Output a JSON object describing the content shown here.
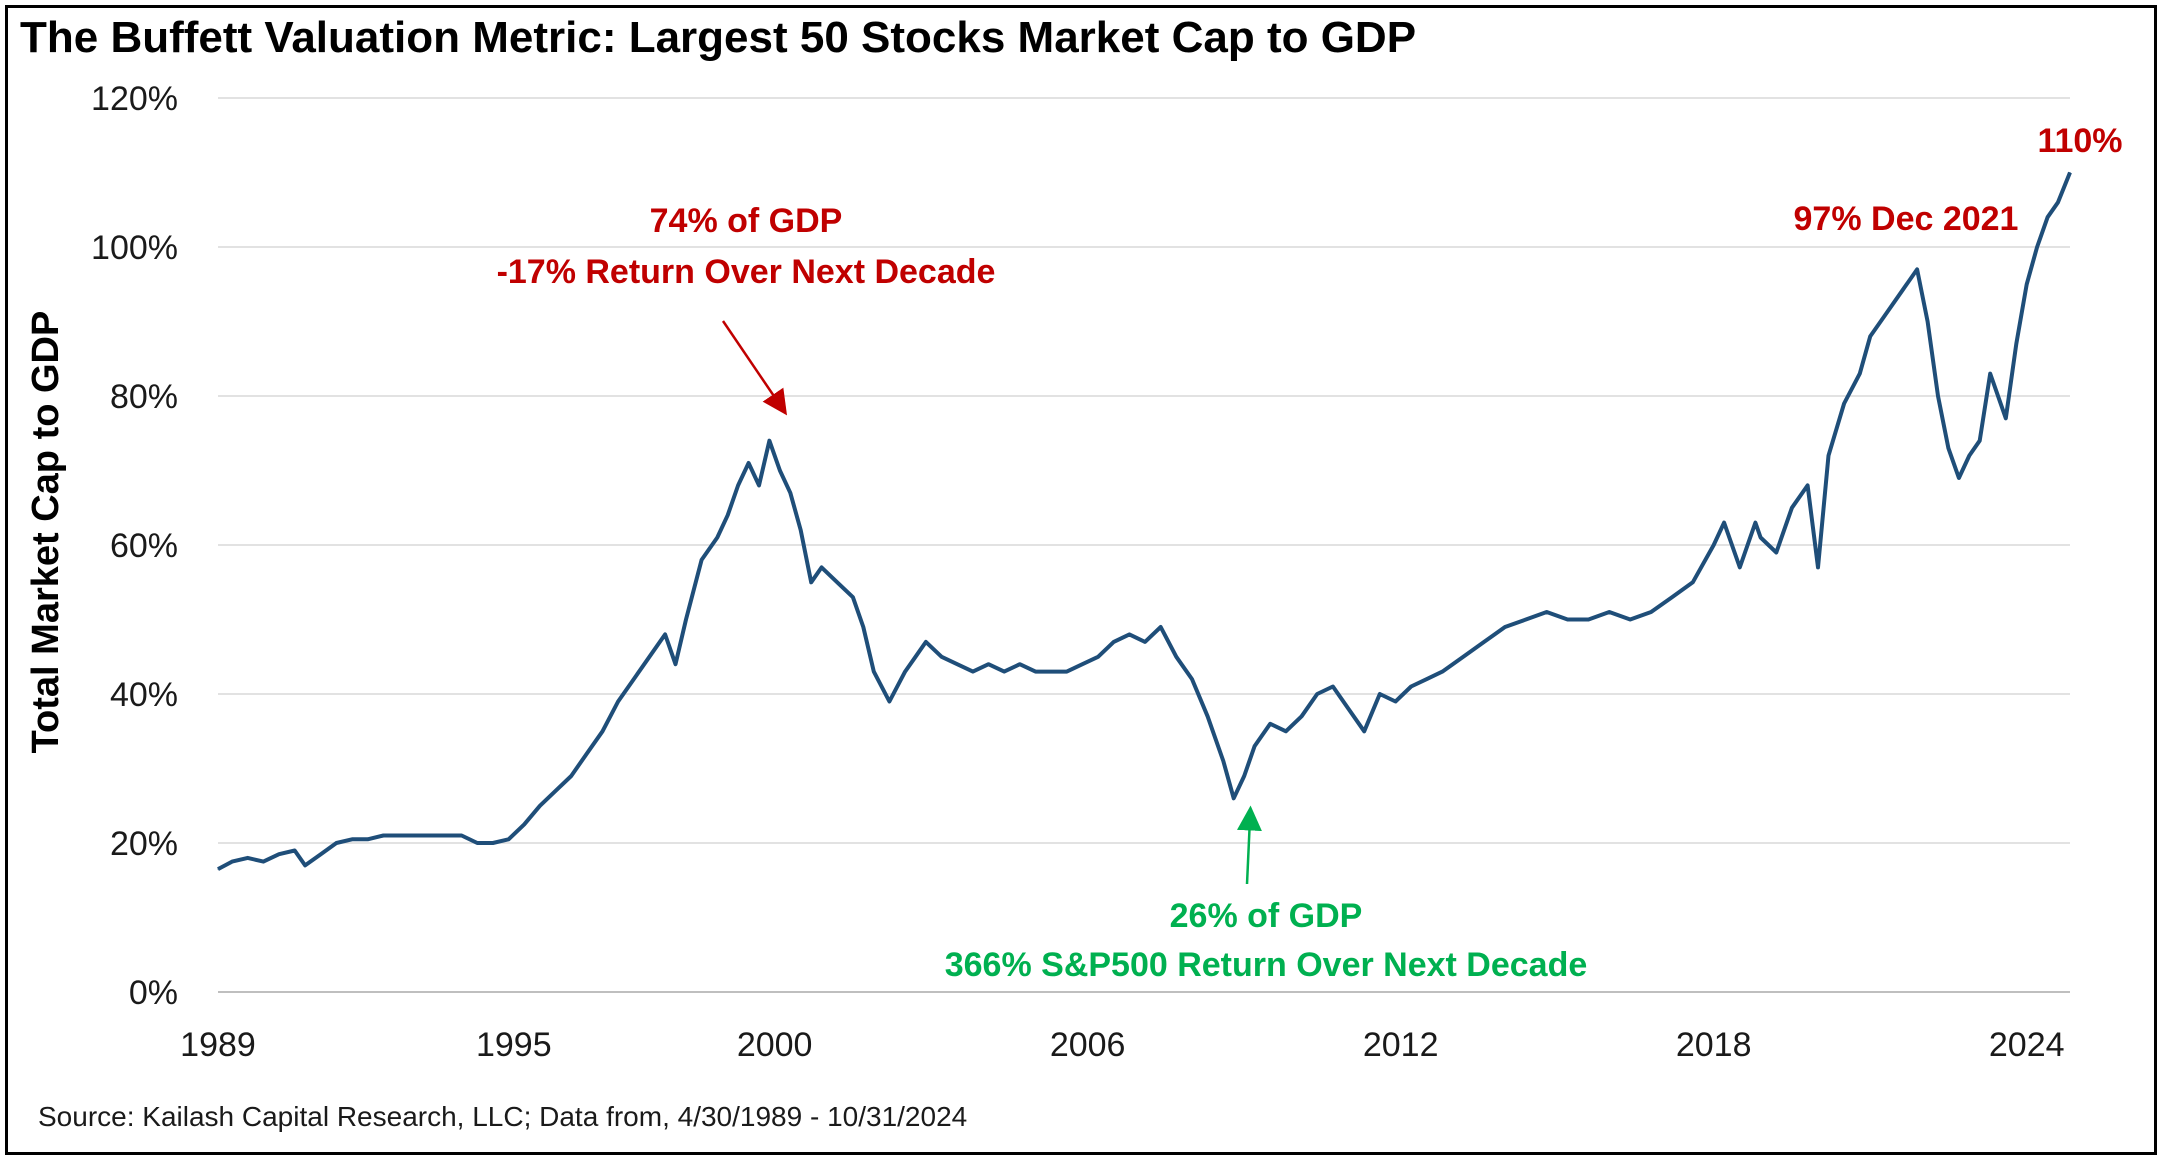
{
  "chart_data": {
    "type": "line",
    "title": "The Buffett Valuation Metric: Largest 50 Stocks Market Cap to GDP",
    "ylabel": "Total Market Cap to GDP",
    "xlabel": "",
    "y_unit": "%",
    "ylim": [
      0,
      120
    ],
    "yticks": [
      0,
      20,
      40,
      60,
      80,
      100,
      120
    ],
    "ytick_labels": [
      "0%",
      "20%",
      "40%",
      "60%",
      "80%",
      "100%",
      "120%"
    ],
    "xlim": [
      1989.33,
      2024.83
    ],
    "xticks": [
      1989,
      1995,
      2000,
      2006,
      2012,
      2018,
      2024
    ],
    "xtick_labels": [
      "1989",
      "1995",
      "2000",
      "2006",
      "2012",
      "2018",
      "2024"
    ],
    "grid": "horizontal",
    "line_color": "#1f4e79",
    "series": [
      {
        "x": [
          1989.33,
          1989.6,
          1989.9,
          1990.2,
          1990.5,
          1990.8,
          1991.0,
          1991.3,
          1991.6,
          1991.9,
          1992.2,
          1992.5,
          1992.8,
          1993.1,
          1993.4,
          1993.7,
          1994.0,
          1994.3,
          1994.6,
          1994.9,
          1995.2,
          1995.5,
          1995.8,
          1996.1,
          1996.4,
          1996.7,
          1997.0,
          1997.3,
          1997.6,
          1997.9,
          1998.1,
          1998.3,
          1998.6,
          1998.9,
          1999.1,
          1999.3,
          1999.5,
          1999.7,
          1999.9,
          2000.1,
          2000.3,
          2000.5,
          2000.7,
          2000.9,
          2001.2,
          2001.5,
          2001.7,
          2001.9,
          2002.2,
          2002.5,
          2002.7,
          2002.9,
          2003.2,
          2003.5,
          2003.8,
          2004.1,
          2004.4,
          2004.7,
          2005.0,
          2005.3,
          2005.6,
          2005.9,
          2006.2,
          2006.5,
          2006.8,
          2007.1,
          2007.4,
          2007.7,
          2008.0,
          2008.3,
          2008.6,
          2008.8,
          2009.0,
          2009.2,
          2009.5,
          2009.8,
          2010.1,
          2010.4,
          2010.7,
          2011.0,
          2011.3,
          2011.6,
          2011.9,
          2012.2,
          2012.5,
          2012.8,
          2013.2,
          2013.6,
          2014.0,
          2014.4,
          2014.8,
          2015.2,
          2015.6,
          2016.0,
          2016.4,
          2016.8,
          2017.2,
          2017.6,
          2018.0,
          2018.2,
          2018.5,
          2018.8,
          2018.9,
          2019.2,
          2019.5,
          2019.8,
          2020.0,
          2020.2,
          2020.5,
          2020.8,
          2021.0,
          2021.3,
          2021.6,
          2021.9,
          2022.1,
          2022.3,
          2022.5,
          2022.7,
          2022.9,
          2023.1,
          2023.3,
          2023.6,
          2023.8,
          2024.0,
          2024.2,
          2024.4,
          2024.6,
          2024.83
        ],
        "y": [
          16.5,
          17.5,
          18,
          17.5,
          18.5,
          19,
          17,
          18.5,
          20,
          20.5,
          20.5,
          21,
          21,
          21,
          21,
          21,
          21,
          20,
          20,
          20.5,
          22.5,
          25,
          27,
          29,
          32,
          35,
          39,
          42,
          45,
          48,
          44,
          50,
          58,
          61,
          64,
          68,
          71,
          68,
          74,
          70,
          67,
          62,
          55,
          57,
          55,
          53,
          49,
          43,
          39,
          43,
          45,
          47,
          45,
          44,
          43,
          44,
          43,
          44,
          43,
          43,
          43,
          44,
          45,
          47,
          48,
          47,
          49,
          45,
          42,
          37,
          31,
          26,
          29,
          33,
          36,
          35,
          37,
          40,
          41,
          38,
          35,
          40,
          39,
          41,
          42,
          43,
          45,
          47,
          49,
          50,
          51,
          50,
          50,
          51,
          50,
          51,
          53,
          55,
          60,
          63,
          57,
          63,
          61,
          59,
          65,
          68,
          57,
          72,
          79,
          83,
          88,
          91,
          94,
          97,
          90,
          80,
          73,
          69,
          72,
          74,
          83,
          77,
          87,
          95,
          100,
          104,
          106,
          110
        ]
      }
    ],
    "annotations": [
      {
        "lines": [
          "74% of GDP",
          "-17% Return Over Next Decade"
        ],
        "color": "#c00000",
        "point": [
          1999.6,
          74
        ]
      },
      {
        "lines": [
          "26% of GDP",
          "366% S&P500 Return Over Next Decade"
        ],
        "color": "#00b050",
        "point": [
          2009.2,
          26
        ]
      },
      {
        "lines": [
          "97% Dec 2021"
        ],
        "color": "#c00000"
      },
      {
        "lines": [
          "110%"
        ],
        "color": "#c00000"
      }
    ]
  },
  "source": "Source: Kailash Capital Research, LLC; Data from, 4/30/1989 - 10/31/2024"
}
